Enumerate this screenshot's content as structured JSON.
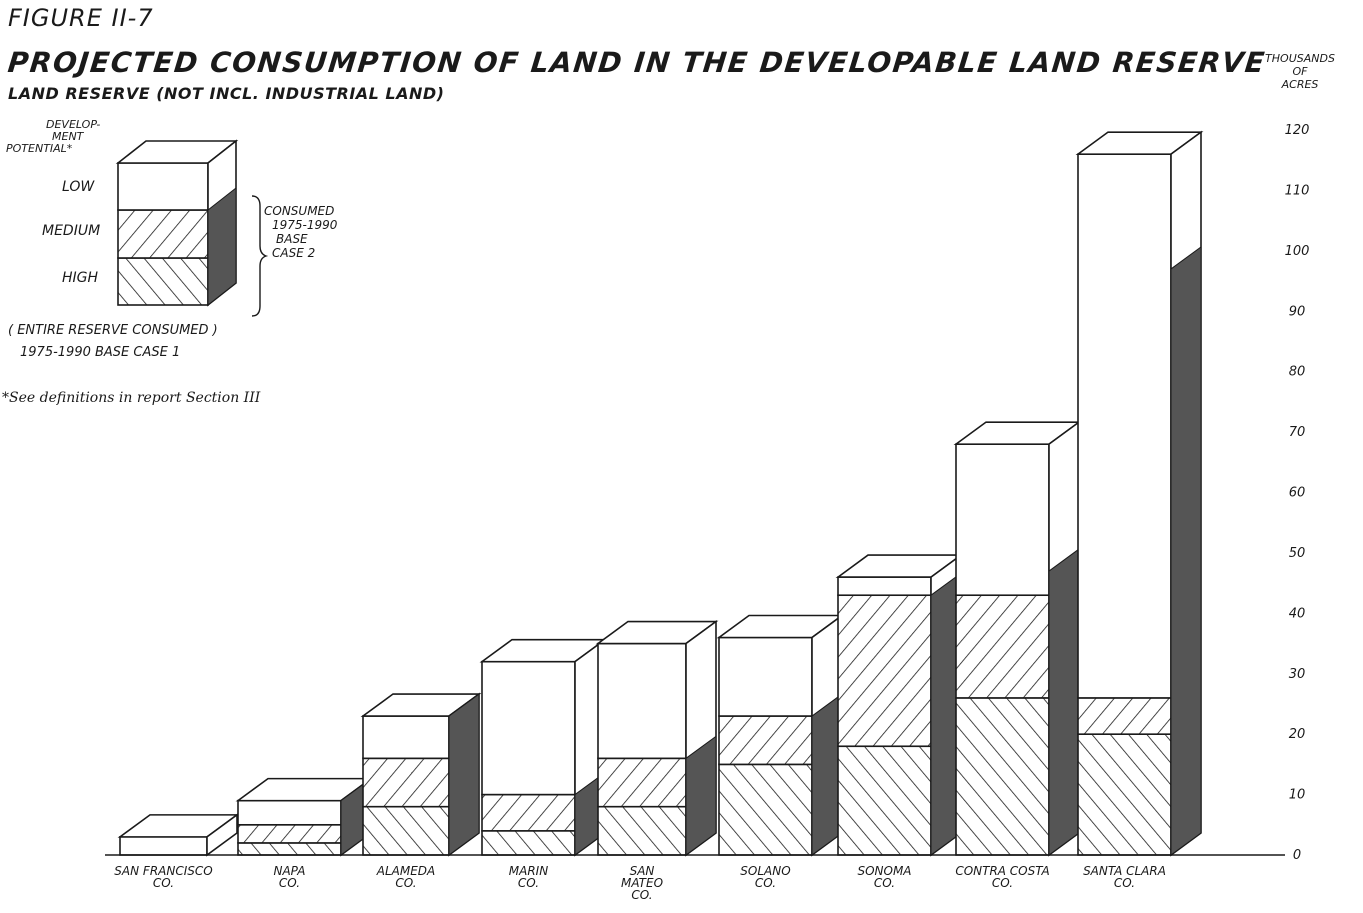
{
  "figure_label": "FIGURE II-7",
  "footnote": "*See definitions in report Section III",
  "legend": {
    "title": "DEVELOP-MENT POTENTIAL*",
    "low": "LOW",
    "medium": "MEDIUM",
    "high": "HIGH",
    "consumed_note": "CONSUMED 1975-1990 BASE CASE 2",
    "entire_note": "( ENTIRE RESERVE CONSUMED ) 1975-1990 BASE CASE 1"
  },
  "colors": {
    "ink": "#1a1a1a",
    "side_shade": "#555555",
    "paper": "#ffffff"
  },
  "chart_data": {
    "type": "bar",
    "title": "PROJECTED CONSUMPTION OF LAND IN THE DEVELOPABLE LAND RESERVE",
    "subtitle": "LAND RESERVE (NOT INCL. INDUSTRIAL LAND)",
    "ylabel": "THOUSANDS OF ACRES",
    "ylim": [
      0,
      120
    ],
    "yticks": [
      0,
      10,
      20,
      30,
      40,
      50,
      60,
      70,
      80,
      90,
      100,
      110,
      120
    ],
    "stacked": true,
    "categories": [
      "SAN FRANCISCO CO.",
      "NAPA CO.",
      "ALAMEDA CO.",
      "MARIN CO.",
      "SAN MATEO CO.",
      "SOLANO CO.",
      "SONOMA CO.",
      "CONTRA COSTA CO.",
      "SANTA CLARA CO."
    ],
    "series": [
      {
        "name": "HIGH",
        "values": [
          0,
          2,
          8,
          4,
          8,
          15,
          18,
          26,
          20
        ]
      },
      {
        "name": "MEDIUM",
        "values": [
          0,
          3,
          8,
          6,
          8,
          8,
          25,
          17,
          6
        ]
      },
      {
        "name": "LOW",
        "values": [
          3,
          4,
          7,
          22,
          19,
          13,
          3,
          25,
          90
        ]
      }
    ],
    "consumed_1975_1990_base_case_2": [
      0,
      9,
      23,
      10,
      16,
      23,
      43,
      47,
      97
    ],
    "grid": false,
    "legend_position": "top-left"
  }
}
